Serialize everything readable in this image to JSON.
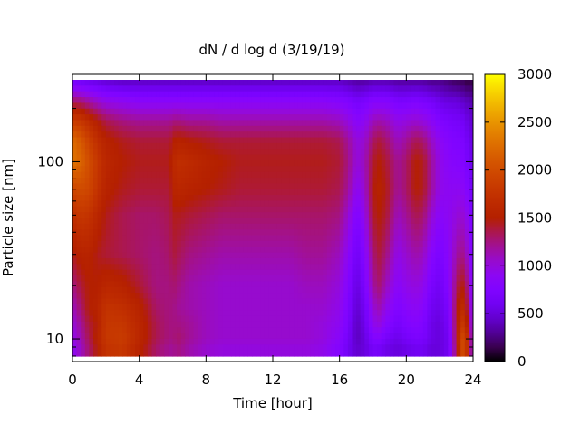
{
  "chart_data": {
    "type": "heatmap",
    "title": "dN / d log d (3/19/19)",
    "xlabel": "Time [hour]",
    "ylabel": "Particle size [nm]",
    "x_range": [
      0,
      24
    ],
    "x_ticks": [
      0,
      4,
      8,
      12,
      16,
      20,
      24
    ],
    "y_scale": "log",
    "y_range": [
      8,
      290
    ],
    "y_ticks": [
      10,
      100
    ],
    "colorbar": {
      "range": [
        0,
        3000
      ],
      "ticks": [
        0,
        500,
        1000,
        1500,
        2000,
        2500,
        3000
      ],
      "palette": "black-purple-red-orange-yellow"
    },
    "time_hours": [
      0,
      0.5,
      1,
      1.5,
      2,
      3,
      4,
      5,
      5.8,
      6,
      6.3,
      7,
      8,
      9,
      10,
      11,
      12,
      13,
      14,
      15,
      16,
      16.5,
      17,
      17.5,
      18,
      18.3,
      18.8,
      19.5,
      20,
      20.5,
      21,
      21.5,
      22,
      22.5,
      23,
      23.3,
      23.6,
      24
    ],
    "diameter_nm": [
      9,
      10,
      12,
      15,
      20,
      30,
      50,
      70,
      100,
      130,
      170,
      220,
      280
    ],
    "values": [
      [
        900,
        1100,
        1300,
        1500,
        1750,
        1800,
        1550,
        1300,
        1200,
        1200,
        1250,
        1150,
        1050,
        1000,
        1000,
        1000,
        1000,
        1000,
        1000,
        950,
        800,
        600,
        450,
        500,
        650,
        650,
        550,
        500,
        550,
        600,
        600,
        500,
        500,
        600,
        1350,
        2000,
        1800,
        900
      ],
      [
        950,
        1150,
        1350,
        1550,
        1800,
        1850,
        1600,
        1350,
        1250,
        1250,
        1300,
        1200,
        1100,
        1050,
        1050,
        1050,
        1050,
        1050,
        1050,
        1000,
        850,
        650,
        400,
        500,
        750,
        800,
        650,
        550,
        650,
        700,
        700,
        550,
        500,
        600,
        1400,
        2000,
        1800,
        900
      ],
      [
        1000,
        1200,
        1400,
        1500,
        1800,
        1800,
        1600,
        1350,
        1250,
        1250,
        1250,
        1200,
        1100,
        1050,
        1050,
        1050,
        1050,
        1050,
        1050,
        1000,
        900,
        700,
        400,
        550,
        900,
        1000,
        800,
        650,
        750,
        800,
        750,
        550,
        500,
        650,
        1400,
        1850,
        1600,
        850
      ],
      [
        1100,
        1300,
        1500,
        1550,
        1750,
        1700,
        1550,
        1300,
        1250,
        1250,
        1200,
        1150,
        1100,
        1050,
        1050,
        1050,
        1050,
        1050,
        1050,
        1050,
        950,
        750,
        450,
        600,
        1000,
        1150,
        950,
        750,
        850,
        900,
        850,
        600,
        550,
        700,
        1400,
        1700,
        1450,
        800
      ],
      [
        1250,
        1400,
        1500,
        1500,
        1600,
        1550,
        1400,
        1250,
        1250,
        1300,
        1250,
        1150,
        1100,
        1050,
        1050,
        1050,
        1050,
        1050,
        1100,
        1100,
        1000,
        800,
        500,
        700,
        1150,
        1300,
        1100,
        850,
        950,
        1000,
        950,
        700,
        600,
        800,
        1300,
        1500,
        1300,
        750
      ],
      [
        1450,
        1550,
        1550,
        1450,
        1400,
        1350,
        1300,
        1250,
        1300,
        1400,
        1350,
        1250,
        1200,
        1150,
        1150,
        1150,
        1150,
        1150,
        1200,
        1200,
        1100,
        900,
        600,
        800,
        1250,
        1400,
        1250,
        950,
        1050,
        1150,
        1100,
        850,
        700,
        850,
        1150,
        1250,
        1100,
        700
      ],
      [
        1700,
        1800,
        1750,
        1600,
        1450,
        1350,
        1300,
        1300,
        1350,
        1450,
        1450,
        1400,
        1350,
        1300,
        1300,
        1300,
        1300,
        1300,
        1300,
        1300,
        1250,
        1050,
        750,
        950,
        1400,
        1500,
        1400,
        1100,
        1200,
        1350,
        1300,
        1050,
        850,
        900,
        1000,
        1050,
        950,
        650
      ],
      [
        1950,
        2000,
        1950,
        1750,
        1550,
        1450,
        1400,
        1400,
        1400,
        1550,
        1600,
        1550,
        1500,
        1450,
        1400,
        1400,
        1400,
        1400,
        1400,
        1400,
        1350,
        1200,
        900,
        1050,
        1450,
        1550,
        1450,
        1200,
        1300,
        1500,
        1450,
        1200,
        950,
        900,
        900,
        900,
        800,
        600
      ],
      [
        2300,
        2200,
        2000,
        1800,
        1600,
        1500,
        1450,
        1450,
        1450,
        1600,
        1700,
        1650,
        1550,
        1500,
        1450,
        1450,
        1450,
        1450,
        1450,
        1450,
        1400,
        1250,
        1000,
        1100,
        1400,
        1500,
        1400,
        1200,
        1300,
        1500,
        1450,
        1200,
        950,
        850,
        800,
        800,
        700,
        550
      ],
      [
        2250,
        2100,
        1900,
        1700,
        1550,
        1450,
        1400,
        1400,
        1400,
        1500,
        1550,
        1500,
        1450,
        1400,
        1400,
        1400,
        1400,
        1400,
        1400,
        1400,
        1350,
        1200,
        1000,
        1050,
        1300,
        1400,
        1300,
        1100,
        1200,
        1350,
        1300,
        1100,
        900,
        800,
        750,
        750,
        650,
        500
      ],
      [
        1850,
        1800,
        1650,
        1500,
        1350,
        1250,
        1200,
        1200,
        1200,
        1250,
        1250,
        1200,
        1200,
        1150,
        1150,
        1150,
        1150,
        1150,
        1150,
        1150,
        1100,
        1000,
        850,
        900,
        1100,
        1150,
        1100,
        950,
        1000,
        1050,
        1000,
        900,
        750,
        700,
        650,
        650,
        550,
        450
      ],
      [
        1300,
        1250,
        1150,
        1050,
        950,
        900,
        850,
        850,
        850,
        850,
        850,
        850,
        850,
        850,
        850,
        850,
        850,
        850,
        850,
        850,
        800,
        750,
        650,
        700,
        800,
        800,
        800,
        700,
        700,
        750,
        700,
        650,
        550,
        500,
        500,
        450,
        400,
        350
      ],
      [
        700,
        650,
        600,
        550,
        500,
        450,
        450,
        450,
        450,
        450,
        450,
        450,
        450,
        450,
        450,
        450,
        450,
        450,
        450,
        450,
        450,
        400,
        350,
        350,
        400,
        400,
        400,
        350,
        350,
        350,
        350,
        300,
        300,
        250,
        200,
        200,
        150,
        150
      ]
    ]
  }
}
